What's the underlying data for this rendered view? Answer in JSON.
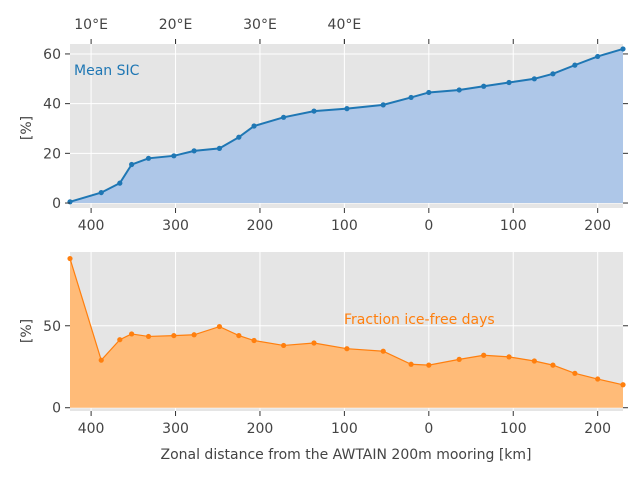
{
  "chart_data": [
    {
      "type": "area",
      "annotation": "Mean SIC",
      "ylabel": "[%]",
      "xlim": [
        425,
        -230
      ],
      "ylim": [
        -2,
        64
      ],
      "yticks": [
        0,
        20,
        40,
        60
      ],
      "xticks": [
        400,
        300,
        200,
        100,
        0,
        -100,
        -200
      ],
      "xtick_labels": [
        "400",
        "300",
        "200",
        "100",
        "0",
        "100",
        "200"
      ],
      "top_axis_label_suffix": "°E",
      "top_xticks": [
        {
          "km": 400,
          "label": "10"
        },
        {
          "km": 300,
          "label": "20"
        },
        {
          "km": 200,
          "label": "30"
        },
        {
          "km": 100,
          "label": "40"
        }
      ],
      "top_minor_ticks_km": [
        300,
        200,
        100,
        0,
        -100,
        -200
      ],
      "grid": true,
      "series": [
        {
          "color": "#1f77b4",
          "fill": "#aec7e8",
          "x": [
            425,
            388,
            366,
            352,
            332,
            302,
            278,
            248,
            225,
            207,
            172,
            136,
            97,
            54,
            21,
            0,
            -36,
            -65,
            -95,
            -125,
            -147,
            -173,
            -200,
            -230
          ],
          "y": [
            0.5,
            4.2,
            8,
            15.5,
            18,
            19,
            21,
            22,
            26.5,
            31,
            34.5,
            37,
            38,
            39.5,
            42.5,
            44.5,
            45.5,
            47,
            48.5,
            50,
            52,
            55.5,
            59,
            62
          ]
        }
      ]
    },
    {
      "type": "area",
      "annotation": "Fraction ice-free days",
      "xlabel": "Zonal distance from the AWTAIN 200m mooring [km]",
      "ylabel": "[%]",
      "xlim": [
        425,
        -230
      ],
      "ylim": [
        -2,
        95
      ],
      "yticks": [
        0,
        50
      ],
      "xticks": [
        400,
        300,
        200,
        100,
        0,
        -100,
        -200
      ],
      "xtick_labels": [
        "400",
        "300",
        "200",
        "100",
        "0",
        "100",
        "200"
      ],
      "grid": true,
      "series": [
        {
          "color": "#ff7f0e",
          "fill": "#ffbb78",
          "x": [
            425,
            388,
            366,
            352,
            332,
            302,
            278,
            248,
            225,
            207,
            172,
            136,
            97,
            54,
            21,
            0,
            -36,
            -65,
            -95,
            -125,
            -147,
            -173,
            -200,
            -230
          ],
          "y": [
            91,
            29,
            41.5,
            45,
            43.5,
            44,
            44.5,
            49.5,
            44,
            41,
            38,
            39.5,
            36,
            34.5,
            26.5,
            26,
            29.5,
            32,
            31,
            28.5,
            26,
            21,
            17.5,
            14
          ]
        }
      ]
    }
  ]
}
